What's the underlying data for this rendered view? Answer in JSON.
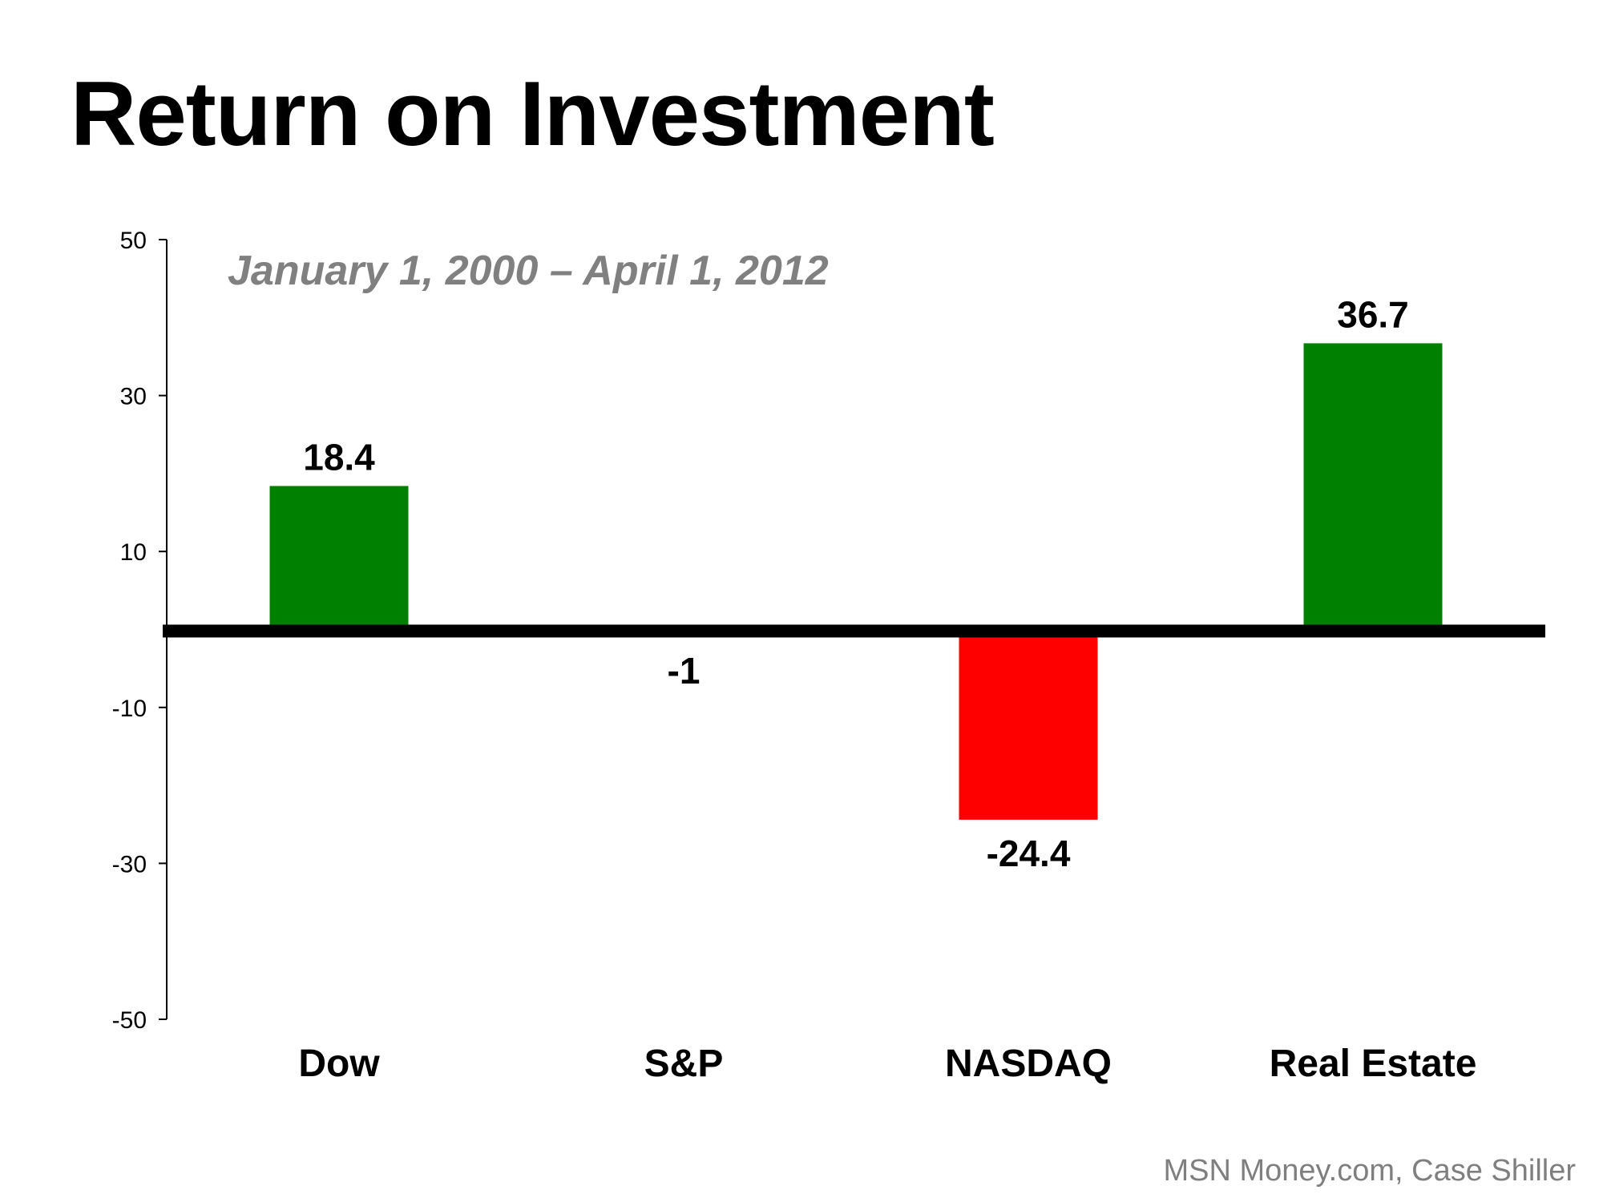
{
  "title": "Return on Investment",
  "source": "MSN Money.com, Case Shiller",
  "colors": {
    "positive": "#008000",
    "negative": "#FF0000",
    "baseline": "#000000",
    "subtitle": "#808080",
    "source": "#7F7F7F"
  },
  "chart_data": {
    "type": "bar",
    "title": "",
    "subtitle": "January 1, 2000 – April 1, 2012",
    "xlabel": "",
    "ylabel": "",
    "categories": [
      "Dow",
      "S&P",
      "NASDAQ",
      "Real Estate"
    ],
    "values": [
      18.4,
      -1,
      -24.4,
      36.7
    ],
    "data_labels": [
      "18.4",
      "-1",
      "-24.4",
      "36.7"
    ],
    "ylim": [
      -50,
      50
    ],
    "yticks": [
      50,
      30,
      10,
      -10,
      -30,
      -50
    ],
    "ytick_labels": [
      "50",
      "30",
      "10",
      "-10",
      "-30",
      "-50"
    ],
    "grid": false,
    "legend": "none"
  }
}
